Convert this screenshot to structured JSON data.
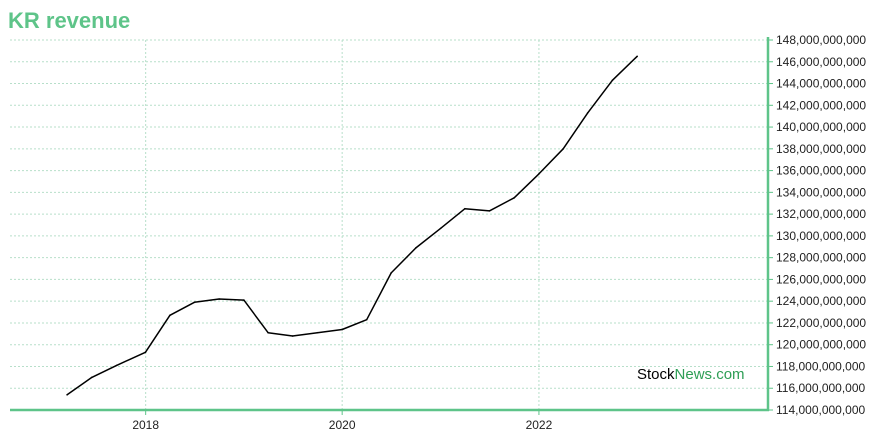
{
  "title": "KR revenue",
  "watermark": {
    "part1": "Stock",
    "part2": "News.com"
  },
  "colors": {
    "accent": "#5ec489",
    "line": "#000000",
    "grid": "#b7dfca"
  },
  "chart_data": {
    "type": "line",
    "title": "KR revenue",
    "xlabel": "",
    "ylabel": "",
    "x_ticks": [
      "2018",
      "2020",
      "2022"
    ],
    "y_ticks": [
      114000000000,
      116000000000,
      118000000000,
      120000000000,
      122000000000,
      124000000000,
      126000000000,
      128000000000,
      130000000000,
      132000000000,
      134000000000,
      136000000000,
      138000000000,
      140000000000,
      142000000000,
      144000000000,
      146000000000,
      148000000000
    ],
    "ylim": [
      114000000000,
      148000000000
    ],
    "xlim": [
      "2016-08-15",
      "2024-05-01"
    ],
    "grid": true,
    "series": [
      {
        "points": [
          {
            "x": "2017-03-15",
            "y": 115400000000
          },
          {
            "x": "2017-06-15",
            "y": 117000000000
          },
          {
            "x": "2017-09-15",
            "y": 118100000000
          },
          {
            "x": "2017-12-31",
            "y": 119300000000
          },
          {
            "x": "2018-04-01",
            "y": 122700000000
          },
          {
            "x": "2018-07-01",
            "y": 123900000000
          },
          {
            "x": "2018-10-01",
            "y": 124200000000
          },
          {
            "x": "2019-01-01",
            "y": 124100000000
          },
          {
            "x": "2019-04-01",
            "y": 121100000000
          },
          {
            "x": "2019-07-01",
            "y": 120800000000
          },
          {
            "x": "2019-10-01",
            "y": 121100000000
          },
          {
            "x": "2020-01-01",
            "y": 121400000000
          },
          {
            "x": "2020-04-01",
            "y": 122300000000
          },
          {
            "x": "2020-07-01",
            "y": 126600000000
          },
          {
            "x": "2020-10-01",
            "y": 128900000000
          },
          {
            "x": "2021-01-01",
            "y": 130700000000
          },
          {
            "x": "2021-04-01",
            "y": 132500000000
          },
          {
            "x": "2021-07-01",
            "y": 132300000000
          },
          {
            "x": "2021-10-01",
            "y": 133500000000
          },
          {
            "x": "2022-01-01",
            "y": 135700000000
          },
          {
            "x": "2022-04-01",
            "y": 138000000000
          },
          {
            "x": "2022-07-01",
            "y": 141300000000
          },
          {
            "x": "2022-10-01",
            "y": 144300000000
          },
          {
            "x": "2023-01-01",
            "y": 146500000000
          }
        ]
      }
    ]
  }
}
